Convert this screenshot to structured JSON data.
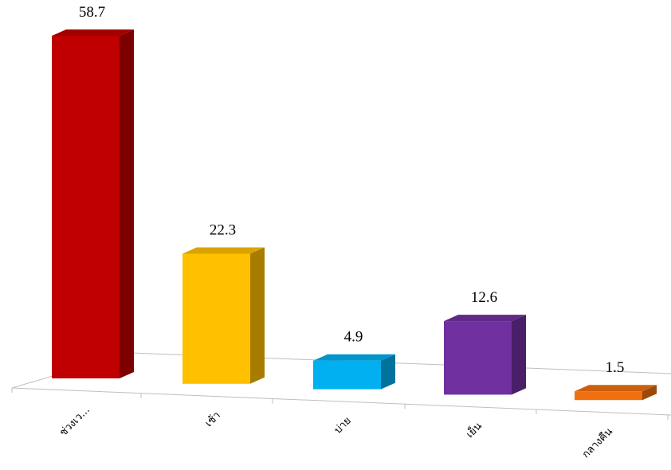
{
  "chart_data": {
    "type": "bar3d",
    "categories": [
      "ช่วงเว...",
      "เช้า",
      "บ่าย",
      "เย็น",
      "กลางคืน"
    ],
    "values": [
      58.7,
      22.3,
      4.9,
      12.6,
      1.5
    ],
    "colors": [
      "#c00000",
      "#ffc000",
      "#00b0f0",
      "#7030a0",
      "#f07010"
    ]
  }
}
